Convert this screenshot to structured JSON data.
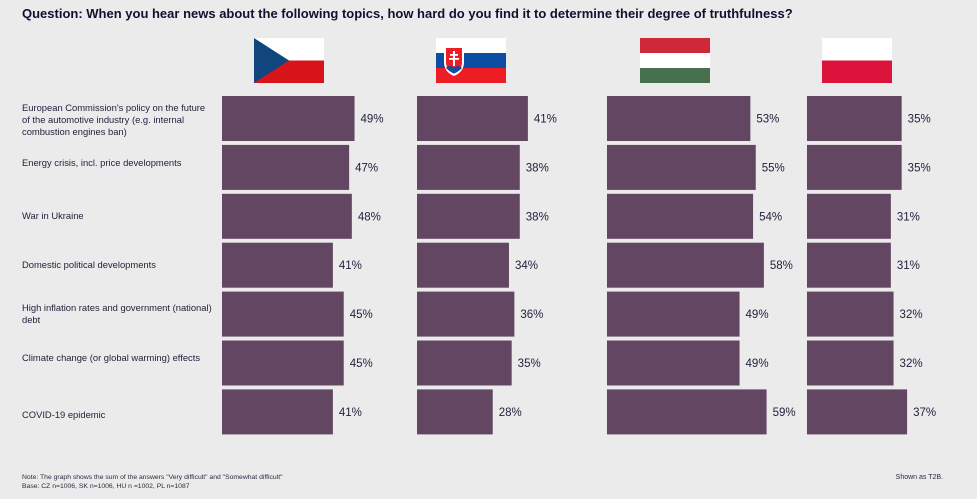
{
  "question": "Question: When you hear news about the following topics, how hard do you find it to determine their degree of truthfulness?",
  "note_line1": "Note: The graph shows the sum of the answers \"Very difficult\" and \"Somewhat difficult\"",
  "note_line2": "Base: CZ n=1006, SK n=1006, HU n =1002, PL n=1087",
  "shown_as": "Shown as T2B.",
  "colors": {
    "bar": "#634762",
    "background": "#ebebeb"
  },
  "flags": [
    {
      "country": "cz",
      "icon": "czech-flag-icon"
    },
    {
      "country": "sk",
      "icon": "slovak-flag-icon"
    },
    {
      "country": "hu",
      "icon": "hungarian-flag-icon"
    },
    {
      "country": "pl",
      "icon": "polish-flag-icon"
    }
  ],
  "chart_data": {
    "type": "bar",
    "orientation": "horizontal",
    "categories": [
      "European Commission's policy on the future of the automotive industry (e.g. internal combustion engines ban)",
      "Energy crisis, incl. price developments",
      "War in Ukraine",
      "Domestic political developments",
      "High inflation rates and government (national) debt",
      "Climate change (or global warming) effects",
      "COVID-19 epidemic"
    ],
    "series": [
      {
        "values": [
          49,
          47,
          48,
          41,
          45,
          45,
          41
        ]
      },
      {
        "values": [
          41,
          38,
          38,
          34,
          36,
          35,
          28
        ]
      },
      {
        "values": [
          53,
          55,
          54,
          58,
          49,
          49,
          59
        ]
      },
      {
        "values": [
          35,
          35,
          31,
          31,
          32,
          32,
          37
        ]
      }
    ],
    "value_suffix": "%"
  }
}
